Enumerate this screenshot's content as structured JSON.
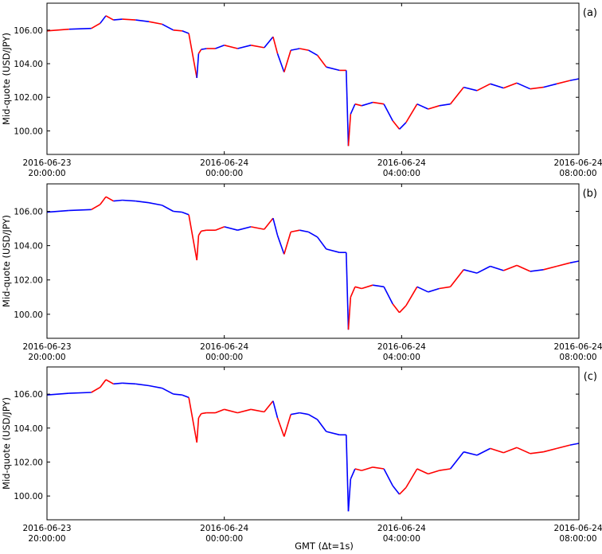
{
  "figure": {
    "ylabel": "Mid-quote (USD/JPY)",
    "xlabel": "GMT (Δt=1s)"
  },
  "colors": {
    "red": "#ff0000",
    "blue": "#0000ff",
    "axis": "#000000"
  },
  "chart_data": [
    {
      "type": "line",
      "panel_label": "(a)",
      "ylim": [
        98.6,
        107.6
      ],
      "xlim": [
        0,
        12
      ],
      "y_ticks": [
        100,
        102,
        104,
        106
      ],
      "y_tick_labels": [
        "100.00",
        "102.00",
        "104.00",
        "106.00"
      ],
      "x_ticks": [
        0,
        4,
        8,
        12
      ],
      "x_tick_labels": [
        [
          "2016-06-23",
          "20:00:00"
        ],
        [
          "2016-06-24",
          "00:00:00"
        ],
        [
          "2016-06-24",
          "04:00:00"
        ],
        [
          "2016-06-24",
          "08:00:00"
        ]
      ],
      "ylabel": "Mid-quote (USD/JPY)",
      "xlabel": "",
      "x_unit": "hours since 2016-06-23 20:00:00 GMT",
      "series_colors_note": "alternating red/blue segments (classification)",
      "x": [
        0.0,
        0.5,
        1.0,
        1.2,
        1.33,
        1.5,
        1.7,
        2.0,
        2.3,
        2.6,
        2.85,
        3.05,
        3.2,
        3.38,
        3.42,
        3.48,
        3.6,
        3.8,
        4.0,
        4.3,
        4.6,
        4.9,
        5.1,
        5.2,
        5.35,
        5.5,
        5.7,
        5.9,
        6.1,
        6.3,
        6.6,
        6.75,
        6.8,
        6.85,
        6.95,
        7.1,
        7.35,
        7.6,
        7.8,
        7.95,
        8.1,
        8.35,
        8.6,
        8.85,
        9.1,
        9.4,
        9.7,
        10.0,
        10.3,
        10.6,
        10.9,
        11.2,
        11.5,
        11.8,
        12.0
      ],
      "y": [
        105.95,
        106.05,
        106.1,
        106.4,
        106.85,
        106.6,
        106.65,
        106.6,
        106.5,
        106.35,
        106.0,
        105.95,
        105.8,
        103.15,
        104.6,
        104.85,
        104.9,
        104.9,
        105.1,
        104.9,
        105.1,
        104.95,
        105.6,
        104.6,
        103.5,
        104.8,
        104.9,
        104.8,
        104.5,
        103.8,
        103.6,
        103.6,
        99.1,
        101.0,
        101.6,
        101.5,
        101.7,
        101.6,
        100.6,
        100.1,
        100.5,
        101.6,
        101.3,
        101.5,
        101.6,
        102.6,
        102.4,
        102.8,
        102.55,
        102.85,
        102.5,
        102.6,
        102.8,
        103.0,
        103.1
      ],
      "segment_colors": [
        "red",
        "blue",
        "red",
        "blue",
        "red",
        "blue",
        "red",
        "blue",
        "red",
        "blue",
        "red",
        "blue",
        "red",
        "blue",
        "red",
        "blue",
        "red",
        "blue",
        "red",
        "blue",
        "red",
        "blue",
        "red",
        "blue",
        "red",
        "blue",
        "red",
        "blue",
        "red",
        "blue",
        "red",
        "blue",
        "red",
        "blue",
        "red",
        "blue",
        "red",
        "blue",
        "red",
        "blue",
        "red",
        "blue",
        "red",
        "blue",
        "red",
        "blue",
        "red",
        "blue",
        "red",
        "blue",
        "red",
        "blue",
        "red",
        "blue"
      ]
    },
    {
      "type": "line",
      "panel_label": "(b)",
      "ylim": [
        98.6,
        107.6
      ],
      "xlim": [
        0,
        12
      ],
      "y_ticks": [
        100,
        102,
        104,
        106
      ],
      "y_tick_labels": [
        "100.00",
        "102.00",
        "104.00",
        "106.00"
      ],
      "x_ticks": [
        0,
        4,
        8,
        12
      ],
      "x_tick_labels": [
        [
          "2016-06-23",
          "20:00:00"
        ],
        [
          "2016-06-24",
          "00:00:00"
        ],
        [
          "2016-06-24",
          "04:00:00"
        ],
        [
          "2016-06-24",
          "08:00:00"
        ]
      ],
      "ylabel": "Mid-quote (USD/JPY)",
      "xlabel": "",
      "x_unit": "hours since 2016-06-23 20:00:00 GMT",
      "x": [
        0.0,
        0.5,
        1.0,
        1.2,
        1.33,
        1.5,
        1.7,
        2.0,
        2.3,
        2.6,
        2.85,
        3.05,
        3.2,
        3.38,
        3.42,
        3.48,
        3.6,
        3.8,
        4.0,
        4.3,
        4.6,
        4.9,
        5.1,
        5.2,
        5.35,
        5.5,
        5.7,
        5.9,
        6.1,
        6.3,
        6.6,
        6.75,
        6.8,
        6.85,
        6.95,
        7.1,
        7.35,
        7.6,
        7.8,
        7.95,
        8.1,
        8.35,
        8.6,
        8.85,
        9.1,
        9.4,
        9.7,
        10.0,
        10.3,
        10.6,
        10.9,
        11.2,
        11.5,
        11.8,
        12.0
      ],
      "y": [
        105.95,
        106.05,
        106.1,
        106.4,
        106.85,
        106.6,
        106.65,
        106.6,
        106.5,
        106.35,
        106.0,
        105.95,
        105.8,
        103.15,
        104.6,
        104.85,
        104.9,
        104.9,
        105.1,
        104.9,
        105.1,
        104.95,
        105.6,
        104.6,
        103.5,
        104.8,
        104.9,
        104.8,
        104.5,
        103.8,
        103.6,
        103.6,
        99.1,
        101.0,
        101.6,
        101.5,
        101.7,
        101.6,
        100.6,
        100.1,
        100.5,
        101.6,
        101.3,
        101.5,
        101.6,
        102.6,
        102.4,
        102.8,
        102.55,
        102.85,
        102.5,
        102.6,
        102.8,
        103.0,
        103.1
      ],
      "segment_colors": [
        "blue",
        "blue",
        "red",
        "red",
        "red",
        "blue",
        "blue",
        "blue",
        "blue",
        "blue",
        "blue",
        "blue",
        "red",
        "red",
        "red",
        "red",
        "red",
        "red",
        "blue",
        "blue",
        "red",
        "red",
        "blue",
        "blue",
        "red",
        "red",
        "blue",
        "blue",
        "blue",
        "blue",
        "blue",
        "blue",
        "red",
        "red",
        "red",
        "red",
        "blue",
        "blue",
        "red",
        "red",
        "red",
        "blue",
        "blue",
        "red",
        "red",
        "blue",
        "blue",
        "blue",
        "red",
        "red",
        "blue",
        "red",
        "red",
        "blue"
      ]
    },
    {
      "type": "line",
      "panel_label": "(c)",
      "ylim": [
        98.6,
        107.6
      ],
      "xlim": [
        0,
        12
      ],
      "y_ticks": [
        100,
        102,
        104,
        106
      ],
      "y_tick_labels": [
        "100.00",
        "102.00",
        "104.00",
        "106.00"
      ],
      "x_ticks": [
        0,
        4,
        8,
        12
      ],
      "x_tick_labels": [
        [
          "2016-06-23",
          "20:00:00"
        ],
        [
          "2016-06-24",
          "00:00:00"
        ],
        [
          "2016-06-24",
          "04:00:00"
        ],
        [
          "2016-06-24",
          "08:00:00"
        ]
      ],
      "ylabel": "Mid-quote (USD/JPY)",
      "xlabel": "GMT (Δt=1s)",
      "x_unit": "hours since 2016-06-23 20:00:00 GMT",
      "x": [
        0.0,
        0.5,
        1.0,
        1.2,
        1.33,
        1.5,
        1.7,
        2.0,
        2.3,
        2.6,
        2.85,
        3.05,
        3.2,
        3.38,
        3.42,
        3.48,
        3.6,
        3.8,
        4.0,
        4.3,
        4.6,
        4.9,
        5.1,
        5.2,
        5.35,
        5.5,
        5.7,
        5.9,
        6.1,
        6.3,
        6.6,
        6.75,
        6.8,
        6.85,
        6.95,
        7.1,
        7.35,
        7.6,
        7.8,
        7.95,
        8.1,
        8.35,
        8.6,
        8.85,
        9.1,
        9.4,
        9.7,
        10.0,
        10.3,
        10.6,
        10.9,
        11.2,
        11.5,
        11.8,
        12.0
      ],
      "y": [
        105.95,
        106.05,
        106.1,
        106.4,
        106.85,
        106.6,
        106.65,
        106.6,
        106.5,
        106.35,
        106.0,
        105.95,
        105.8,
        103.15,
        104.6,
        104.85,
        104.9,
        104.9,
        105.1,
        104.9,
        105.1,
        104.95,
        105.6,
        104.6,
        103.5,
        104.8,
        104.9,
        104.8,
        104.5,
        103.8,
        103.6,
        103.6,
        99.1,
        101.0,
        101.6,
        101.5,
        101.7,
        101.6,
        100.6,
        100.1,
        100.5,
        101.6,
        101.3,
        101.5,
        101.6,
        102.6,
        102.4,
        102.8,
        102.55,
        102.85,
        102.5,
        102.6,
        102.8,
        103.0,
        103.1
      ],
      "segment_colors": [
        "blue",
        "blue",
        "red",
        "red",
        "red",
        "blue",
        "blue",
        "blue",
        "blue",
        "blue",
        "blue",
        "blue",
        "red",
        "red",
        "red",
        "red",
        "red",
        "red",
        "red",
        "red",
        "red",
        "red",
        "blue",
        "red",
        "red",
        "blue",
        "blue",
        "blue",
        "blue",
        "blue",
        "blue",
        "blue",
        "blue",
        "blue",
        "red",
        "red",
        "red",
        "blue",
        "blue",
        "red",
        "red",
        "red",
        "red",
        "red",
        "blue",
        "blue",
        "blue",
        "red",
        "red",
        "red",
        "red",
        "red",
        "red",
        "blue"
      ]
    }
  ]
}
